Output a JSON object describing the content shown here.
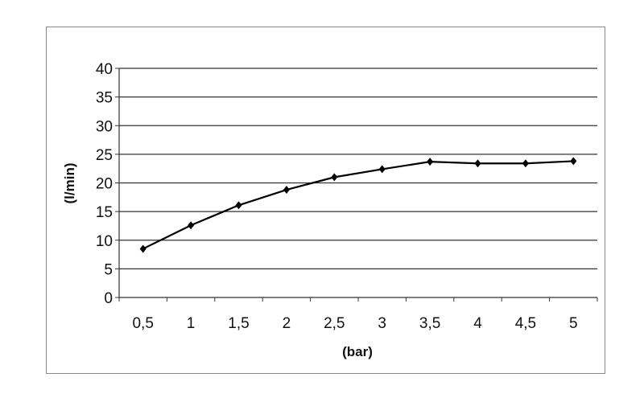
{
  "chart_data": {
    "type": "line",
    "categories": [
      "0,5",
      "1",
      "1,5",
      "2",
      "2,5",
      "3",
      "3,5",
      "4",
      "4,5",
      "5"
    ],
    "series": [
      {
        "values": [
          8.5,
          12.6,
          16.1,
          18.8,
          21.0,
          22.4,
          23.7,
          23.4,
          23.4,
          23.8
        ]
      }
    ],
    "xlabel": "(bar)",
    "ylabel": "(l/min)",
    "ylim": [
      0,
      40
    ],
    "yticks": [
      "0",
      "5",
      "10",
      "15",
      "20",
      "25",
      "30",
      "35",
      "40"
    ],
    "grid": "horizontal",
    "line_color": "#000000",
    "legend": "none"
  }
}
